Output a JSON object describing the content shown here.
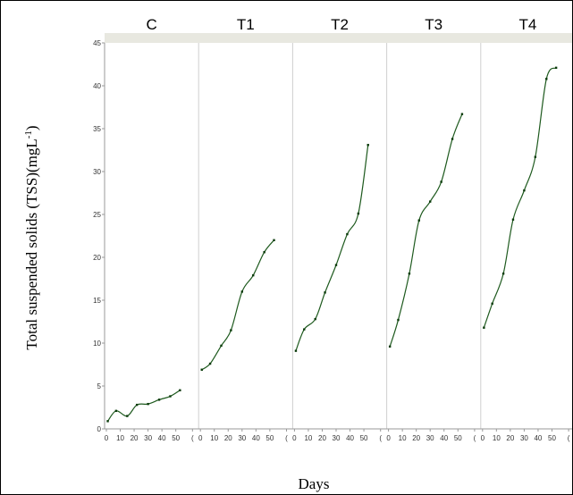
{
  "chart_data": {
    "type": "scatter",
    "ylabel": "Total suspended solids (TSS)(mgL",
    "ylabel_superscript": "-1",
    "ylabel_close": ")",
    "xlabel": "Days",
    "ylim": [
      0,
      45
    ],
    "xlim": [
      0,
      60
    ],
    "yticks": [
      "0",
      "5",
      "10",
      "15",
      "20",
      "25",
      "30",
      "35",
      "40",
      "45"
    ],
    "xticks": [
      "0",
      "10",
      "20",
      "30",
      "40",
      "50",
      "("
    ],
    "line_color": "#1e5a1e",
    "point_color": "#0a3a0a",
    "panels": [
      {
        "name": "C",
        "x": [
          1,
          7,
          15,
          22,
          30,
          38,
          46,
          53
        ],
        "y": [
          0.9,
          2.1,
          1.5,
          2.8,
          2.9,
          3.4,
          3.8,
          4.5
        ]
      },
      {
        "name": "T1",
        "x": [
          1,
          7,
          15,
          22,
          30,
          38,
          46,
          53
        ],
        "y": [
          6.9,
          7.6,
          9.7,
          11.5,
          16.0,
          17.9,
          20.6,
          22.0
        ]
      },
      {
        "name": "T2",
        "x": [
          1,
          7,
          15,
          22,
          30,
          38,
          46,
          53
        ],
        "y": [
          9.1,
          11.6,
          12.8,
          15.9,
          19.1,
          22.7,
          25.1,
          33.1
        ]
      },
      {
        "name": "T3",
        "x": [
          1,
          7,
          15,
          22,
          30,
          38,
          46,
          53
        ],
        "y": [
          9.6,
          12.7,
          18.1,
          24.3,
          26.5,
          28.8,
          33.8,
          36.7
        ]
      },
      {
        "name": "T4",
        "x": [
          1,
          7,
          15,
          22,
          30,
          38,
          46,
          53
        ],
        "y": [
          11.8,
          14.6,
          18.1,
          24.4,
          27.8,
          31.7,
          40.8,
          42.1
        ]
      }
    ]
  }
}
